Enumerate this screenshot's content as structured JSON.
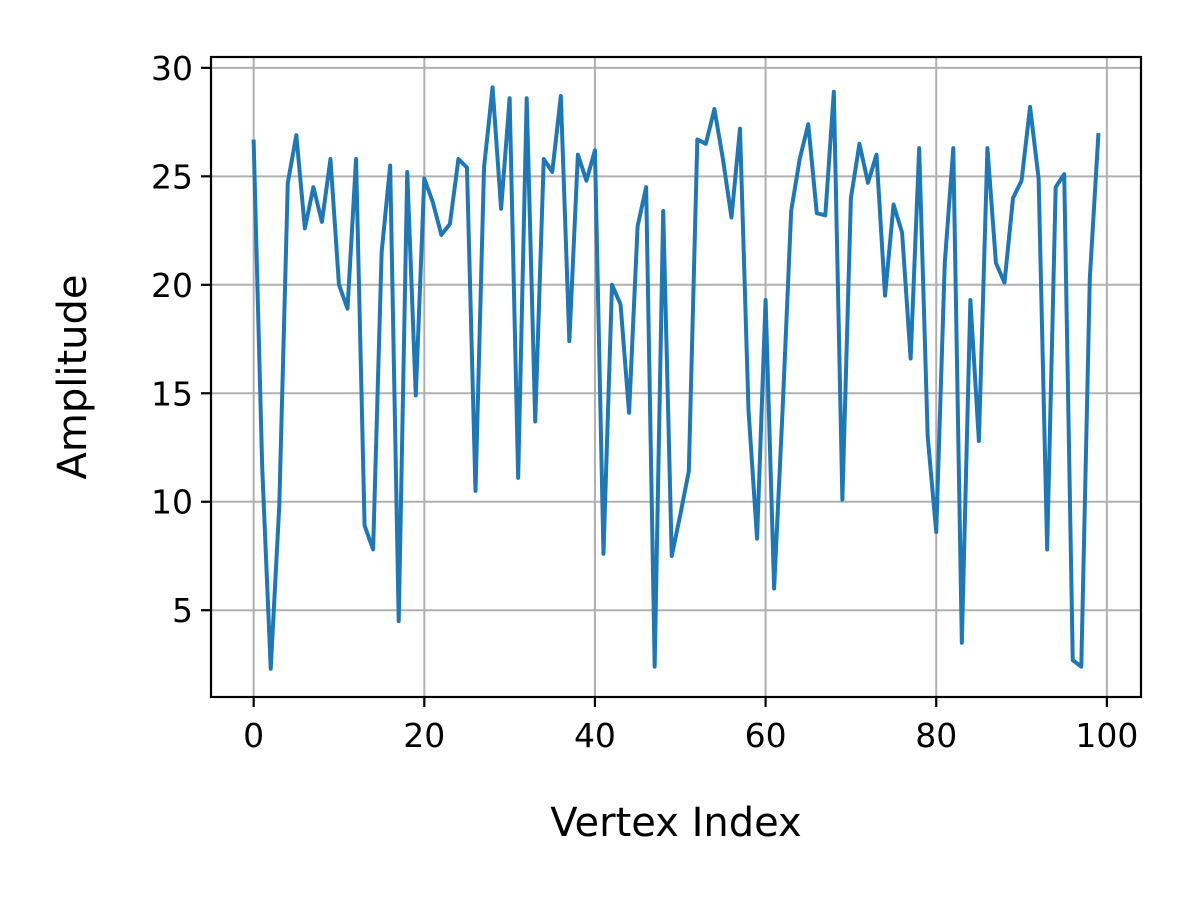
{
  "chart_data": {
    "type": "line",
    "title": "",
    "xlabel": "Vertex Index",
    "ylabel": "Amplitude",
    "xlim": [
      -5,
      104
    ],
    "ylim": [
      1,
      30.5
    ],
    "xticks": [
      0,
      20,
      40,
      60,
      80,
      100
    ],
    "yticks": [
      5,
      10,
      15,
      20,
      25,
      30
    ],
    "grid": true,
    "series": [
      {
        "color": "#1f77b4",
        "x": [
          0,
          1,
          2,
          3,
          4,
          5,
          6,
          7,
          8,
          9,
          10,
          11,
          12,
          13,
          14,
          15,
          16,
          17,
          18,
          19,
          20,
          21,
          22,
          23,
          24,
          25,
          26,
          27,
          28,
          29,
          30,
          31,
          32,
          33,
          34,
          35,
          36,
          37,
          38,
          39,
          40,
          41,
          42,
          43,
          44,
          45,
          46,
          47,
          48,
          49,
          50,
          51,
          52,
          53,
          54,
          55,
          56,
          57,
          58,
          59,
          60,
          61,
          62,
          63,
          64,
          65,
          66,
          67,
          68,
          69,
          70,
          71,
          72,
          73,
          74,
          75,
          76,
          77,
          78,
          79,
          80,
          81,
          82,
          83,
          84,
          85,
          86,
          87,
          88,
          89,
          90,
          91,
          92,
          93,
          94,
          95,
          96,
          97,
          98,
          99
        ],
        "y": [
          26.6,
          11.6,
          2.3,
          9.8,
          24.7,
          26.9,
          22.6,
          24.5,
          22.9,
          25.8,
          20.0,
          18.9,
          25.8,
          8.9,
          7.8,
          21.5,
          25.5,
          4.5,
          25.2,
          14.9,
          24.9,
          23.8,
          22.3,
          22.8,
          25.8,
          25.4,
          10.5,
          25.4,
          29.1,
          23.5,
          28.6,
          11.1,
          28.6,
          13.7,
          25.8,
          25.2,
          28.7,
          17.4,
          26.0,
          24.8,
          26.2,
          7.6,
          20.0,
          19.1,
          14.1,
          22.7,
          24.5,
          2.4,
          23.4,
          7.5,
          9.4,
          11.4,
          26.7,
          26.5,
          28.1,
          25.8,
          23.1,
          27.2,
          14.2,
          8.3,
          19.3,
          6.0,
          14.3,
          23.4,
          25.8,
          27.4,
          23.3,
          23.2,
          28.9,
          10.1,
          24.0,
          26.5,
          24.7,
          26.0,
          19.5,
          23.7,
          22.4,
          16.6,
          26.3,
          13.0,
          8.6,
          21.0,
          26.3,
          3.5,
          19.3,
          12.8,
          26.3,
          21.0,
          20.1,
          24.0,
          24.8,
          28.2,
          24.9,
          7.8,
          24.5,
          25.1,
          2.7,
          2.4,
          20.3,
          26.9
        ]
      }
    ]
  }
}
